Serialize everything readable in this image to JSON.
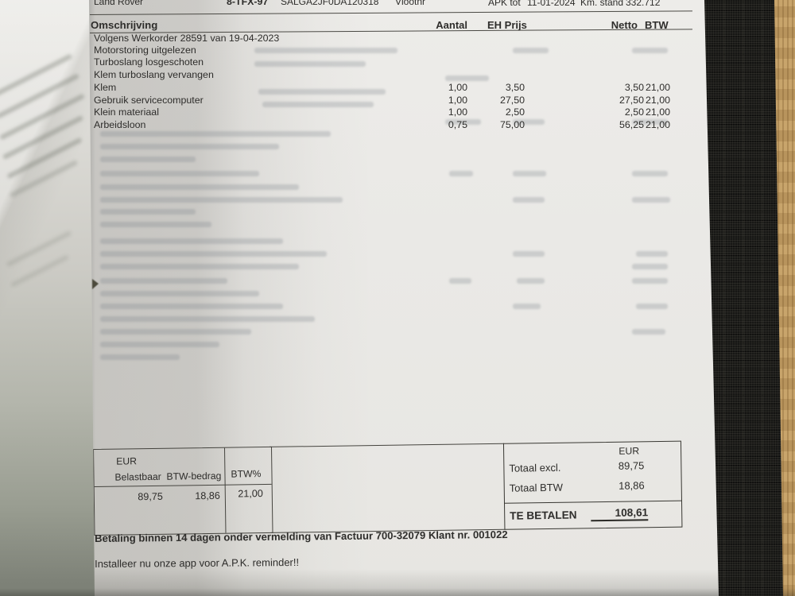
{
  "vehicle_header": {
    "make": "Land Rover",
    "license_plate": "8-TFX-97",
    "vin": "SALGA2JF0DA120318",
    "fleet_label": "Vlootnr",
    "apk_label": "APK tot",
    "apk_date": "11-01-2024",
    "km_label": "Km. stand",
    "km_value": "332.712"
  },
  "line_items_table": {
    "headers": {
      "description": "Omschrijving",
      "qty": "Aantal",
      "unit_price": "EH Prijs",
      "net": "Netto",
      "vat": "BTW"
    },
    "rows": [
      {
        "description": "Volgens Werkorder 28591 van 19-04-2023",
        "qty": "",
        "unit_price": "",
        "net": "",
        "vat": ""
      },
      {
        "description": "Motorstoring uitgelezen",
        "qty": "",
        "unit_price": "",
        "net": "",
        "vat": ""
      },
      {
        "description": "Turboslang losgeschoten",
        "qty": "",
        "unit_price": "",
        "net": "",
        "vat": ""
      },
      {
        "description": "Klem turboslang vervangen",
        "qty": "",
        "unit_price": "",
        "net": "",
        "vat": ""
      },
      {
        "description": "Klem",
        "qty": "1,00",
        "unit_price": "3,50",
        "net": "3,50",
        "vat": "21,00"
      },
      {
        "description": "Gebruik servicecomputer",
        "qty": "1,00",
        "unit_price": "27,50",
        "net": "27,50",
        "vat": "21,00"
      },
      {
        "description": "Klein materiaal",
        "qty": "1,00",
        "unit_price": "2,50",
        "net": "2,50",
        "vat": "21,00"
      },
      {
        "description": "Arbeidsloon",
        "qty": "0,75",
        "unit_price": "75,00",
        "net": "56,25",
        "vat": "21,00"
      }
    ]
  },
  "vat_summary": {
    "currency_label": "EUR",
    "taxable_label": "Belastbaar",
    "vat_amount_label": "BTW-bedrag",
    "vat_pct_label": "BTW%",
    "taxable_value": "89,75",
    "vat_amount_value": "18,86",
    "vat_pct_value": "21,00"
  },
  "totals": {
    "currency_label": "EUR",
    "total_excl_label": "Totaal excl.",
    "total_excl_value": "89,75",
    "total_vat_label": "Totaal BTW",
    "total_vat_value": "18,86",
    "amount_due_label": "TE BETALEN",
    "amount_due_value": "108,61"
  },
  "footer": {
    "payment_terms": "Betaling binnen 14 dagen onder vermelding van Factuur 700-32079 Klant nr. 001022",
    "app_promo": "Installeer nu onze app voor A.P.K. reminder!!"
  },
  "colors": {
    "paper": "#eae9e6",
    "paper_shadow": "#c7c6c2",
    "under_sheet": "#d8d7d2",
    "placemat": "#171715",
    "wood": "#b8935a",
    "ink": "#2e2d2b"
  }
}
